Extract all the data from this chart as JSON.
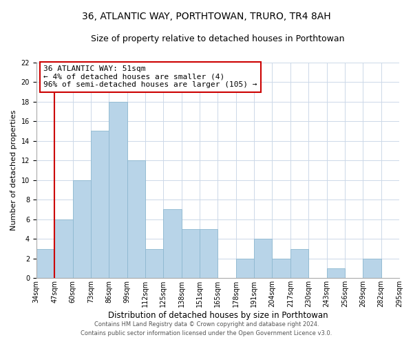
{
  "title": "36, ATLANTIC WAY, PORTHTOWAN, TRURO, TR4 8AH",
  "subtitle": "Size of property relative to detached houses in Porthtowan",
  "xlabel": "Distribution of detached houses by size in Porthtowan",
  "ylabel": "Number of detached properties",
  "bar_labels": [
    "34sqm",
    "47sqm",
    "60sqm",
    "73sqm",
    "86sqm",
    "99sqm",
    "112sqm",
    "125sqm",
    "138sqm",
    "151sqm",
    "165sqm",
    "178sqm",
    "191sqm",
    "204sqm",
    "217sqm",
    "230sqm",
    "243sqm",
    "256sqm",
    "269sqm",
    "282sqm",
    "295sqm"
  ],
  "bar_values": [
    3,
    6,
    10,
    15,
    18,
    12,
    3,
    7,
    5,
    5,
    0,
    2,
    4,
    2,
    3,
    0,
    1,
    0,
    2,
    0
  ],
  "bar_color": "#b8d4e8",
  "bar_edge_color": "#8db8d0",
  "annotation_line1": "36 ATLANTIC WAY: 51sqm",
  "annotation_line2": "← 4% of detached houses are smaller (4)",
  "annotation_line3": "96% of semi-detached houses are larger (105) →",
  "annotation_box_facecolor": "#ffffff",
  "annotation_box_edgecolor": "#cc0000",
  "vline_color": "#cc0000",
  "vline_x_index": 1,
  "ylim": [
    0,
    22
  ],
  "yticks": [
    0,
    2,
    4,
    6,
    8,
    10,
    12,
    14,
    16,
    18,
    20,
    22
  ],
  "footer1": "Contains HM Land Registry data © Crown copyright and database right 2024.",
  "footer2": "Contains public sector information licensed under the Open Government Licence v3.0.",
  "background_color": "#ffffff",
  "grid_color": "#ccd8e8",
  "title_fontsize": 10,
  "subtitle_fontsize": 9,
  "xlabel_fontsize": 8.5,
  "ylabel_fontsize": 8,
  "annotation_fontsize": 8,
  "tick_fontsize": 7,
  "footer_fontsize": 6
}
